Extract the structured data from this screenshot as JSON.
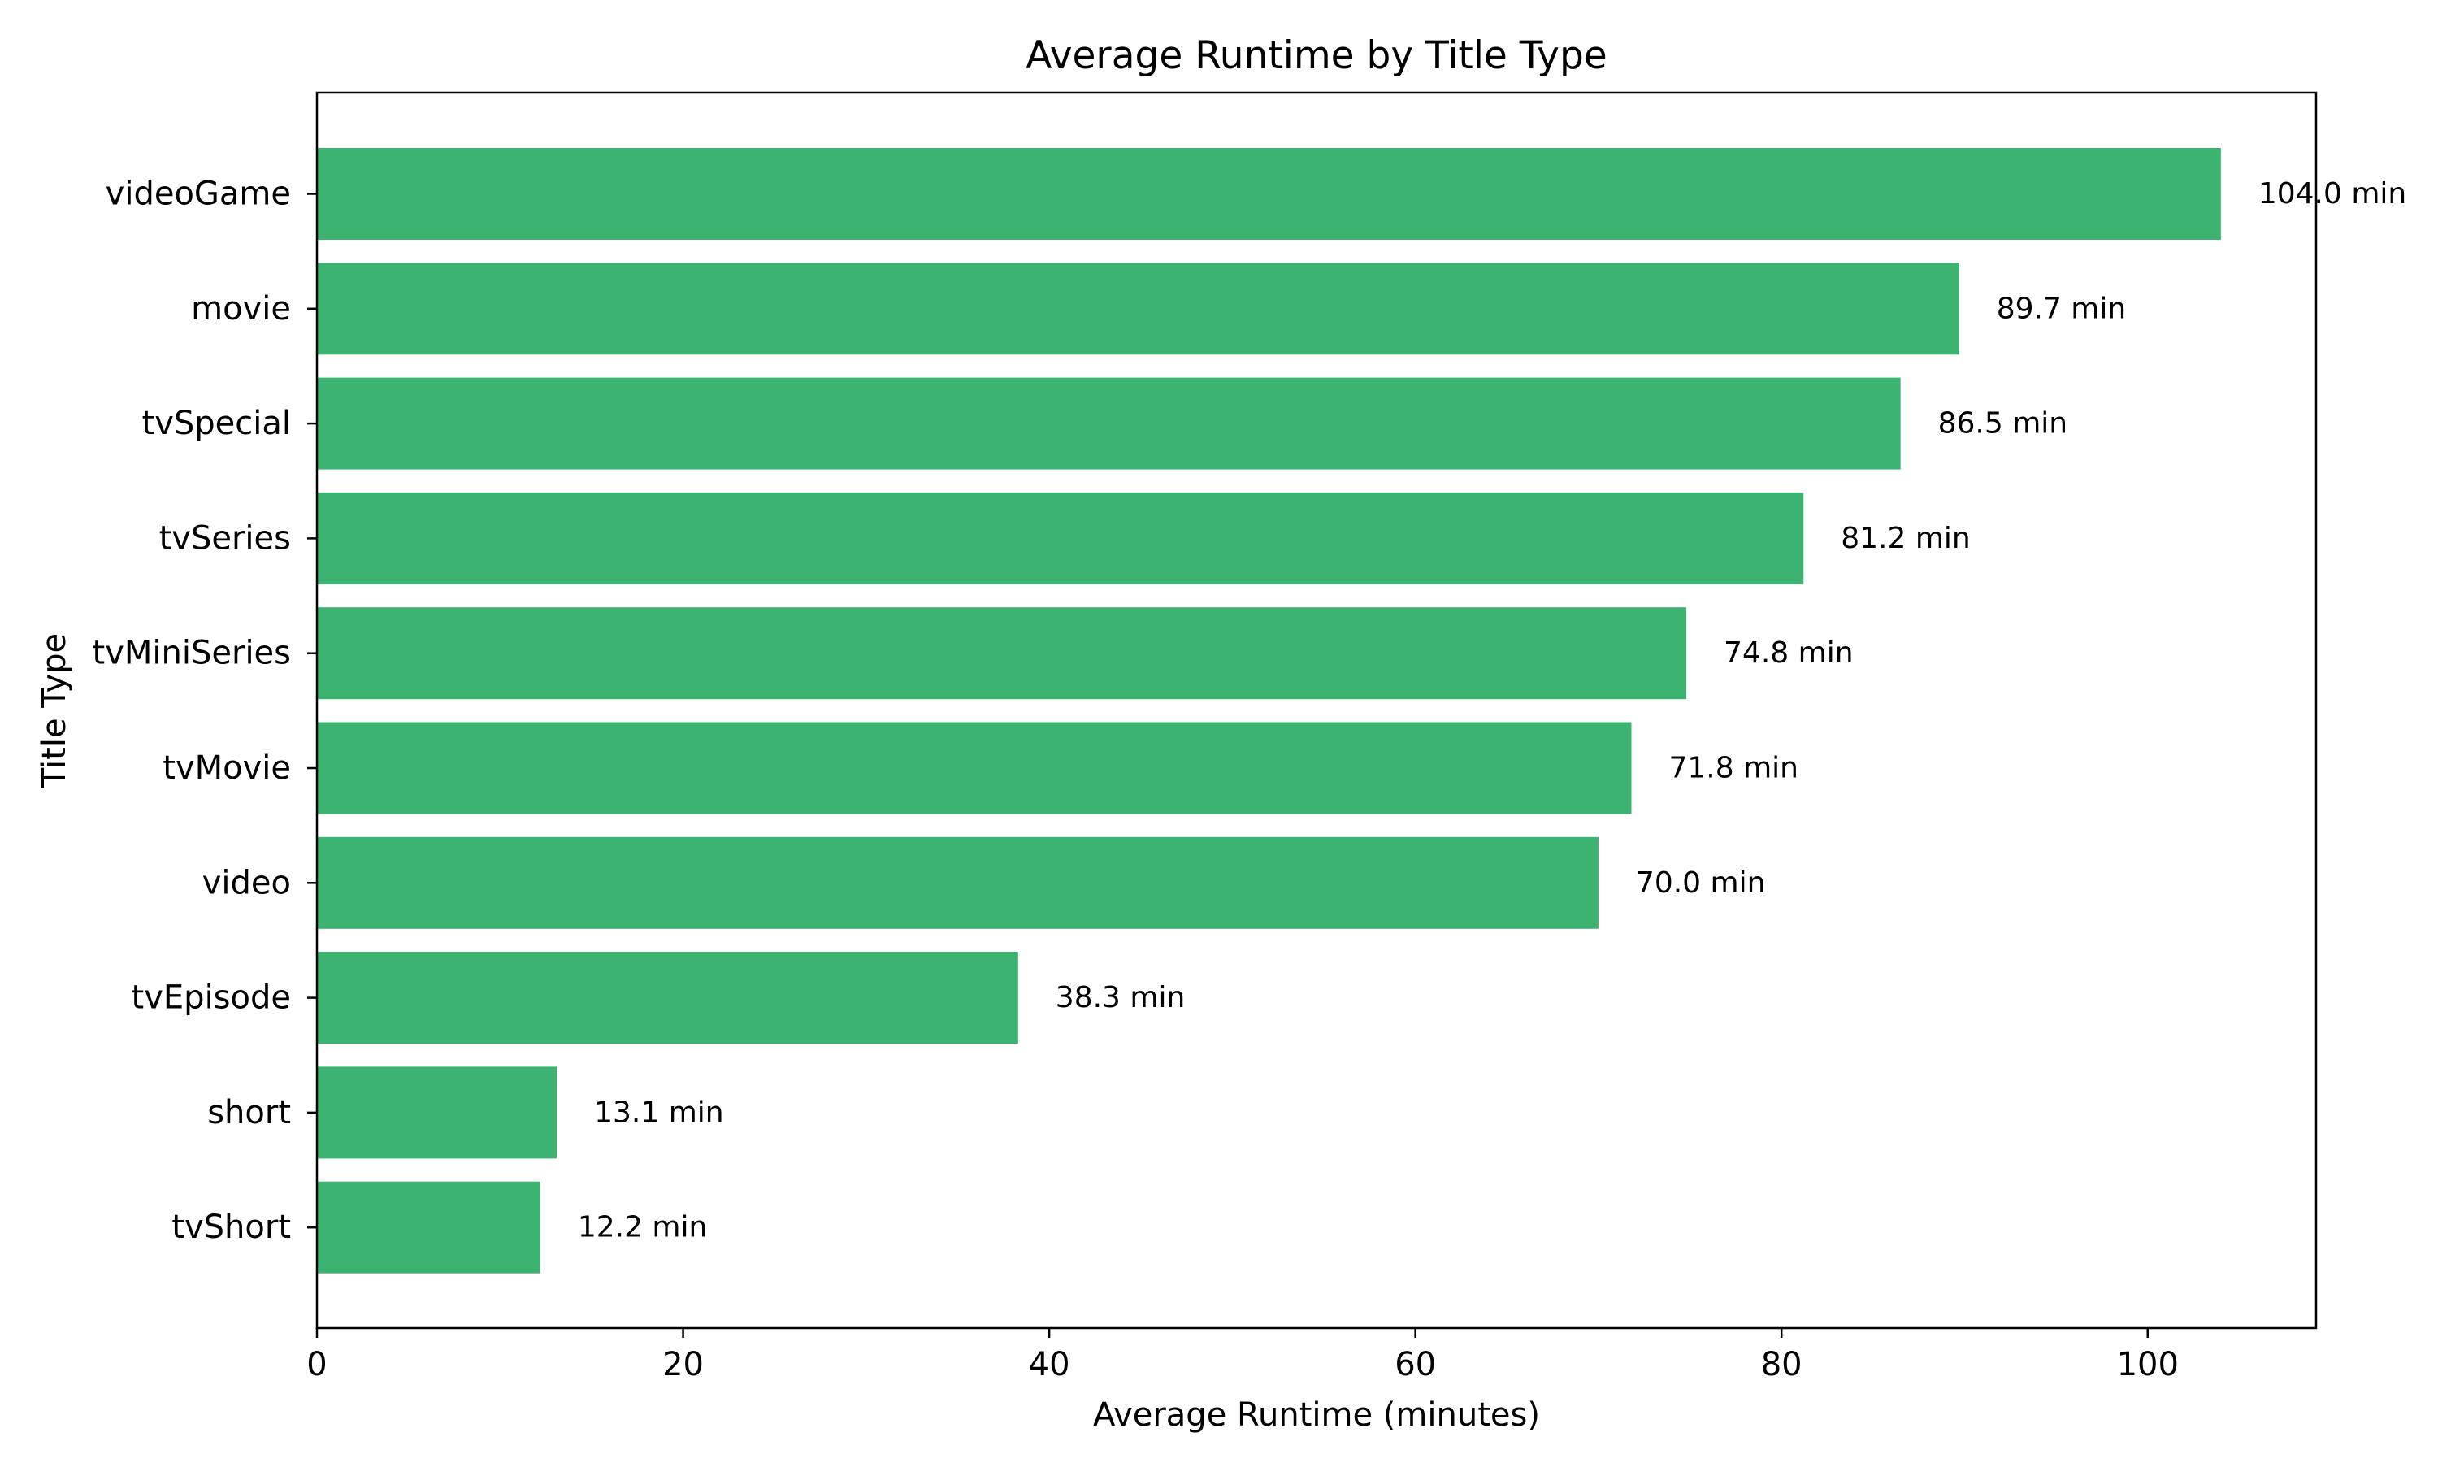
{
  "chart_data": {
    "type": "bar",
    "orientation": "horizontal",
    "title": "Average Runtime by Title Type",
    "xlabel": "Average Runtime (minutes)",
    "ylabel": "Title Type",
    "categories": [
      "videoGame",
      "movie",
      "tvSpecial",
      "tvSeries",
      "tvMiniSeries",
      "tvMovie",
      "video",
      "tvEpisode",
      "short",
      "tvShort"
    ],
    "values": [
      104.0,
      89.7,
      86.5,
      81.2,
      74.8,
      71.8,
      70.0,
      38.3,
      13.1,
      12.2
    ],
    "data_labels": [
      "104.0 min",
      "89.7 min",
      "86.5 min",
      "81.2 min",
      "74.8 min",
      "71.8 min",
      "70.0 min",
      "38.3 min",
      "13.1 min",
      "12.2 min"
    ],
    "xlim": [
      0,
      109.2
    ],
    "xticks": [
      0,
      20,
      40,
      60,
      80,
      100
    ],
    "grid": false,
    "bar_color": "#3cb371"
  }
}
